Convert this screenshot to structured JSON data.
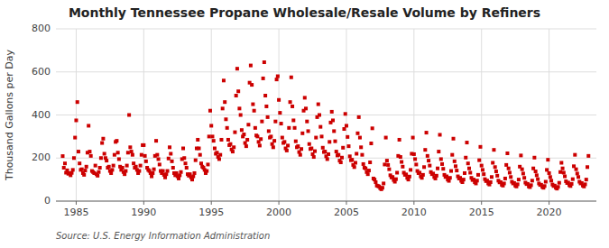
{
  "chart_data": {
    "type": "scatter",
    "title": "Monthly Tennessee Propane Wholesale/Resale Volume by Refiners",
    "y_label": "Thousand Gallons per Day",
    "annotations": [
      "Source: U.S. Energy Information Administration"
    ],
    "color": "#cc0000",
    "marker": "square",
    "grid": true,
    "xlim": [
      1983.5,
      2023.5
    ],
    "xticks": [
      1985,
      1990,
      1995,
      2000,
      2005,
      2010,
      2015,
      2020
    ],
    "ylim": [
      0,
      800
    ],
    "yticks": [
      0,
      200,
      400,
      600,
      800
    ],
    "x": [
      1984,
      1984.0833333333,
      1984.1666666667,
      1984.25,
      1984.3333333333,
      1984.4166666667,
      1984.5,
      1984.5833333333,
      1984.6666666667,
      1984.75,
      1984.8333333333,
      1984.9166666667,
      1985,
      1985.0833333333,
      1985.1666666667,
      1985.25,
      1985.3333333333,
      1985.4166666667,
      1985.5,
      1985.5833333333,
      1985.6666666667,
      1985.75,
      1985.8333333333,
      1985.9166666667,
      1986,
      1986.0833333333,
      1986.1666666667,
      1986.25,
      1986.3333333333,
      1986.4166666667,
      1986.5,
      1986.5833333333,
      1986.6666666667,
      1986.75,
      1986.8333333333,
      1986.9166666667,
      1987,
      1987.0833333333,
      1987.1666666667,
      1987.25,
      1987.3333333333,
      1987.4166666667,
      1987.5,
      1987.5833333333,
      1987.6666666667,
      1987.75,
      1987.8333333333,
      1987.9166666667,
      1988,
      1988.0833333333,
      1988.1666666667,
      1988.25,
      1988.3333333333,
      1988.4166666667,
      1988.5,
      1988.5833333333,
      1988.6666666667,
      1988.75,
      1988.8333333333,
      1988.9166666667,
      1989,
      1989.0833333333,
      1989.1666666667,
      1989.25,
      1989.3333333333,
      1989.4166666667,
      1989.5,
      1989.5833333333,
      1989.6666666667,
      1989.75,
      1989.8333333333,
      1989.9166666667,
      1990,
      1990.0833333333,
      1990.1666666667,
      1990.25,
      1990.3333333333,
      1990.4166666667,
      1990.5,
      1990.5833333333,
      1990.6666666667,
      1990.75,
      1990.8333333333,
      1990.9166666667,
      1991,
      1991.0833333333,
      1991.1666666667,
      1991.25,
      1991.3333333333,
      1991.4166666667,
      1991.5,
      1991.5833333333,
      1991.6666666667,
      1991.75,
      1991.8333333333,
      1991.9166666667,
      1992,
      1992.0833333333,
      1992.1666666667,
      1992.25,
      1992.3333333333,
      1992.4166666667,
      1992.5,
      1992.5833333333,
      1992.6666666667,
      1992.75,
      1992.8333333333,
      1992.9166666667,
      1993,
      1993.0833333333,
      1993.1666666667,
      1993.25,
      1993.3333333333,
      1993.4166666667,
      1993.5,
      1993.5833333333,
      1993.6666666667,
      1993.75,
      1993.8333333333,
      1993.9166666667,
      1994,
      1994.0833333333,
      1994.1666666667,
      1994.25,
      1994.3333333333,
      1994.4166666667,
      1994.5,
      1994.5833333333,
      1994.6666666667,
      1994.75,
      1994.8333333333,
      1994.9166666667,
      1995,
      1995.0833333333,
      1995.1666666667,
      1995.25,
      1995.3333333333,
      1995.4166666667,
      1995.5,
      1995.5833333333,
      1995.6666666667,
      1995.75,
      1995.8333333333,
      1995.9166666667,
      1996,
      1996.0833333333,
      1996.1666666667,
      1996.25,
      1996.3333333333,
      1996.4166666667,
      1996.5,
      1996.5833333333,
      1996.6666666667,
      1996.75,
      1996.8333333333,
      1996.9166666667,
      1997,
      1997.0833333333,
      1997.1666666667,
      1997.25,
      1997.3333333333,
      1997.4166666667,
      1997.5,
      1997.5833333333,
      1997.6666666667,
      1997.75,
      1997.8333333333,
      1997.9166666667,
      1998,
      1998.0833333333,
      1998.1666666667,
      1998.25,
      1998.3333333333,
      1998.4166666667,
      1998.5,
      1998.5833333333,
      1998.6666666667,
      1998.75,
      1998.8333333333,
      1998.9166666667,
      1999,
      1999.0833333333,
      1999.1666666667,
      1999.25,
      1999.3333333333,
      1999.4166666667,
      1999.5,
      1999.5833333333,
      1999.6666666667,
      1999.75,
      1999.8333333333,
      1999.9166666667,
      2000,
      2000.0833333333,
      2000.1666666667,
      2000.25,
      2000.3333333333,
      2000.4166666667,
      2000.5,
      2000.5833333333,
      2000.6666666667,
      2000.75,
      2000.8333333333,
      2000.9166666667,
      2001,
      2001.0833333333,
      2001.1666666667,
      2001.25,
      2001.3333333333,
      2001.4166666667,
      2001.5,
      2001.5833333333,
      2001.6666666667,
      2001.75,
      2001.8333333333,
      2001.9166666667,
      2002,
      2002.0833333333,
      2002.1666666667,
      2002.25,
      2002.3333333333,
      2002.4166666667,
      2002.5,
      2002.5833333333,
      2002.6666666667,
      2002.75,
      2002.8333333333,
      2002.9166666667,
      2003,
      2003.0833333333,
      2003.1666666667,
      2003.25,
      2003.3333333333,
      2003.4166666667,
      2003.5,
      2003.5833333333,
      2003.6666666667,
      2003.75,
      2003.8333333333,
      2003.9166666667,
      2004,
      2004.0833333333,
      2004.1666666667,
      2004.25,
      2004.3333333333,
      2004.4166666667,
      2004.5,
      2004.5833333333,
      2004.6666666667,
      2004.75,
      2004.8333333333,
      2004.9166666667,
      2005,
      2005.0833333333,
      2005.1666666667,
      2005.25,
      2005.3333333333,
      2005.4166666667,
      2005.5,
      2005.5833333333,
      2005.6666666667,
      2005.75,
      2005.8333333333,
      2005.9166666667,
      2006,
      2006.0833333333,
      2006.1666666667,
      2006.25,
      2006.3333333333,
      2006.4166666667,
      2006.5,
      2006.5833333333,
      2006.6666666667,
      2006.75,
      2006.8333333333,
      2006.9166666667,
      2007,
      2007.0833333333,
      2007.1666666667,
      2007.25,
      2007.3333333333,
      2007.4166666667,
      2007.5,
      2007.5833333333,
      2007.6666666667,
      2007.75,
      2007.8333333333,
      2007.9166666667,
      2008,
      2008.0833333333,
      2008.1666666667,
      2008.25,
      2008.3333333333,
      2008.4166666667,
      2008.5,
      2008.5833333333,
      2008.6666666667,
      2008.75,
      2008.8333333333,
      2008.9166666667,
      2009,
      2009.0833333333,
      2009.1666666667,
      2009.25,
      2009.3333333333,
      2009.4166666667,
      2009.5,
      2009.5833333333,
      2009.6666666667,
      2009.75,
      2009.8333333333,
      2009.9166666667,
      2010,
      2010.0833333333,
      2010.1666666667,
      2010.25,
      2010.3333333333,
      2010.4166666667,
      2010.5,
      2010.5833333333,
      2010.6666666667,
      2010.75,
      2010.8333333333,
      2010.9166666667,
      2011,
      2011.0833333333,
      2011.1666666667,
      2011.25,
      2011.3333333333,
      2011.4166666667,
      2011.5,
      2011.5833333333,
      2011.6666666667,
      2011.75,
      2011.8333333333,
      2011.9166666667,
      2012,
      2012.0833333333,
      2012.1666666667,
      2012.25,
      2012.3333333333,
      2012.4166666667,
      2012.5,
      2012.5833333333,
      2012.6666666667,
      2012.75,
      2012.8333333333,
      2012.9166666667,
      2013,
      2013.0833333333,
      2013.1666666667,
      2013.25,
      2013.3333333333,
      2013.4166666667,
      2013.5,
      2013.5833333333,
      2013.6666666667,
      2013.75,
      2013.8333333333,
      2013.9166666667,
      2014,
      2014.0833333333,
      2014.1666666667,
      2014.25,
      2014.3333333333,
      2014.4166666667,
      2014.5,
      2014.5833333333,
      2014.6666666667,
      2014.75,
      2014.8333333333,
      2014.9166666667,
      2015,
      2015.0833333333,
      2015.1666666667,
      2015.25,
      2015.3333333333,
      2015.4166666667,
      2015.5,
      2015.5833333333,
      2015.6666666667,
      2015.75,
      2015.8333333333,
      2015.9166666667,
      2016,
      2016.0833333333,
      2016.1666666667,
      2016.25,
      2016.3333333333,
      2016.4166666667,
      2016.5,
      2016.5833333333,
      2016.6666666667,
      2016.75,
      2016.8333333333,
      2016.9166666667,
      2017,
      2017.0833333333,
      2017.1666666667,
      2017.25,
      2017.3333333333,
      2017.4166666667,
      2017.5,
      2017.5833333333,
      2017.6666666667,
      2017.75,
      2017.8333333333,
      2017.9166666667,
      2018,
      2018.0833333333,
      2018.1666666667,
      2018.25,
      2018.3333333333,
      2018.4166666667,
      2018.5,
      2018.5833333333,
      2018.6666666667,
      2018.75,
      2018.8333333333,
      2018.9166666667,
      2019,
      2019.0833333333,
      2019.1666666667,
      2019.25,
      2019.3333333333,
      2019.4166666667,
      2019.5,
      2019.5833333333,
      2019.6666666667,
      2019.75,
      2019.8333333333,
      2019.9166666667,
      2020,
      2020.0833333333,
      2020.1666666667,
      2020.25,
      2020.3333333333,
      2020.4166666667,
      2020.5,
      2020.5833333333,
      2020.6666666667,
      2020.75,
      2020.8333333333,
      2020.9166666667,
      2021,
      2021.0833333333,
      2021.1666666667,
      2021.25,
      2021.3333333333,
      2021.4166666667,
      2021.5,
      2021.5833333333,
      2021.6666666667,
      2021.75,
      2021.8333333333,
      2021.9166666667,
      2022,
      2022.0833333333,
      2022.1666666667,
      2022.25,
      2022.3333333333,
      2022.4166666667,
      2022.5,
      2022.5833333333,
      2022.6666666667,
      2022.75,
      2022.8333333333,
      2022.9166666667
    ],
    "values": [
      209,
      155,
      175,
      132,
      143,
      127,
      130,
      120,
      131,
      145,
      200,
      295,
      375,
      460,
      230,
      175,
      145,
      148,
      130,
      122,
      142,
      160,
      225,
      350,
      230,
      210,
      140,
      135,
      130,
      165,
      125,
      118,
      135,
      155,
      200,
      270,
      290,
      220,
      200,
      188,
      155,
      160,
      140,
      130,
      145,
      165,
      215,
      275,
      280,
      225,
      195,
      160,
      145,
      155,
      135,
      125,
      140,
      165,
      225,
      400,
      250,
      230,
      215,
      175,
      155,
      160,
      145,
      130,
      140,
      165,
      215,
      260,
      260,
      210,
      185,
      155,
      145,
      140,
      130,
      115,
      130,
      148,
      210,
      280,
      215,
      195,
      170,
      140,
      130,
      140,
      122,
      110,
      125,
      140,
      198,
      250,
      220,
      185,
      155,
      130,
      120,
      130,
      115,
      105,
      120,
      135,
      195,
      245,
      200,
      175,
      155,
      125,
      118,
      125,
      110,
      100,
      115,
      130,
      190,
      245,
      285,
      245,
      215,
      175,
      160,
      155,
      145,
      130,
      140,
      170,
      300,
      420,
      350,
      300,
      280,
      245,
      220,
      225,
      205,
      195,
      215,
      285,
      430,
      560,
      460,
      380,
      340,
      285,
      260,
      265,
      240,
      230,
      250,
      320,
      490,
      615,
      510,
      430,
      400,
      330,
      300,
      310,
      270,
      255,
      285,
      355,
      550,
      630,
      540,
      450,
      420,
      340,
      305,
      300,
      275,
      258,
      288,
      370,
      570,
      645,
      490,
      440,
      390,
      325,
      295,
      300,
      265,
      250,
      280,
      370,
      565,
      580,
      470,
      410,
      360,
      295,
      270,
      275,
      245,
      235,
      258,
      340,
      460,
      575,
      440,
      375,
      340,
      278,
      250,
      255,
      228,
      215,
      242,
      315,
      420,
      480,
      430,
      370,
      325,
      265,
      242,
      245,
      218,
      205,
      232,
      295,
      390,
      450,
      400,
      345,
      300,
      248,
      228,
      230,
      208,
      195,
      218,
      275,
      365,
      415,
      375,
      325,
      278,
      230,
      212,
      215,
      188,
      180,
      202,
      248,
      335,
      405,
      350,
      298,
      255,
      208,
      190,
      192,
      168,
      158,
      178,
      220,
      315,
      390,
      295,
      250,
      215,
      172,
      155,
      152,
      135,
      125,
      142,
      180,
      268,
      338,
      105,
      100,
      88,
      72,
      70,
      68,
      60,
      55,
      62,
      82,
      170,
      295,
      188,
      168,
      148,
      120,
      110,
      112,
      98,
      90,
      102,
      132,
      210,
      285,
      205,
      182,
      160,
      132,
      122,
      124,
      108,
      100,
      114,
      145,
      220,
      295,
      218,
      195,
      170,
      140,
      130,
      132,
      115,
      108,
      122,
      158,
      238,
      318,
      210,
      188,
      165,
      135,
      125,
      128,
      112,
      105,
      118,
      152,
      230,
      308,
      195,
      172,
      150,
      122,
      112,
      115,
      100,
      94,
      108,
      140,
      215,
      290,
      185,
      162,
      142,
      115,
      105,
      108,
      94,
      88,
      100,
      130,
      202,
      272,
      175,
      152,
      132,
      108,
      98,
      100,
      88,
      82,
      95,
      122,
      190,
      252,
      165,
      145,
      125,
      102,
      93,
      95,
      82,
      77,
      88,
      112,
      178,
      238,
      158,
      138,
      118,
      95,
      87,
      88,
      76,
      72,
      82,
      105,
      168,
      222,
      152,
      132,
      112,
      90,
      82,
      84,
      72,
      68,
      78,
      100,
      160,
      212,
      148,
      128,
      108,
      86,
      79,
      80,
      68,
      65,
      74,
      95,
      152,
      202,
      138,
      120,
      102,
      82,
      75,
      76,
      66,
      62,
      70,
      90,
      145,
      192,
      130,
      112,
      95,
      77,
      70,
      72,
      62,
      58,
      66,
      85,
      135,
      178,
      152,
      132,
      115,
      92,
      84,
      86,
      74,
      70,
      80,
      102,
      162,
      215,
      148,
      128,
      112,
      90,
      82,
      84,
      72,
      68,
      78,
      100,
      158,
      210
    ]
  }
}
